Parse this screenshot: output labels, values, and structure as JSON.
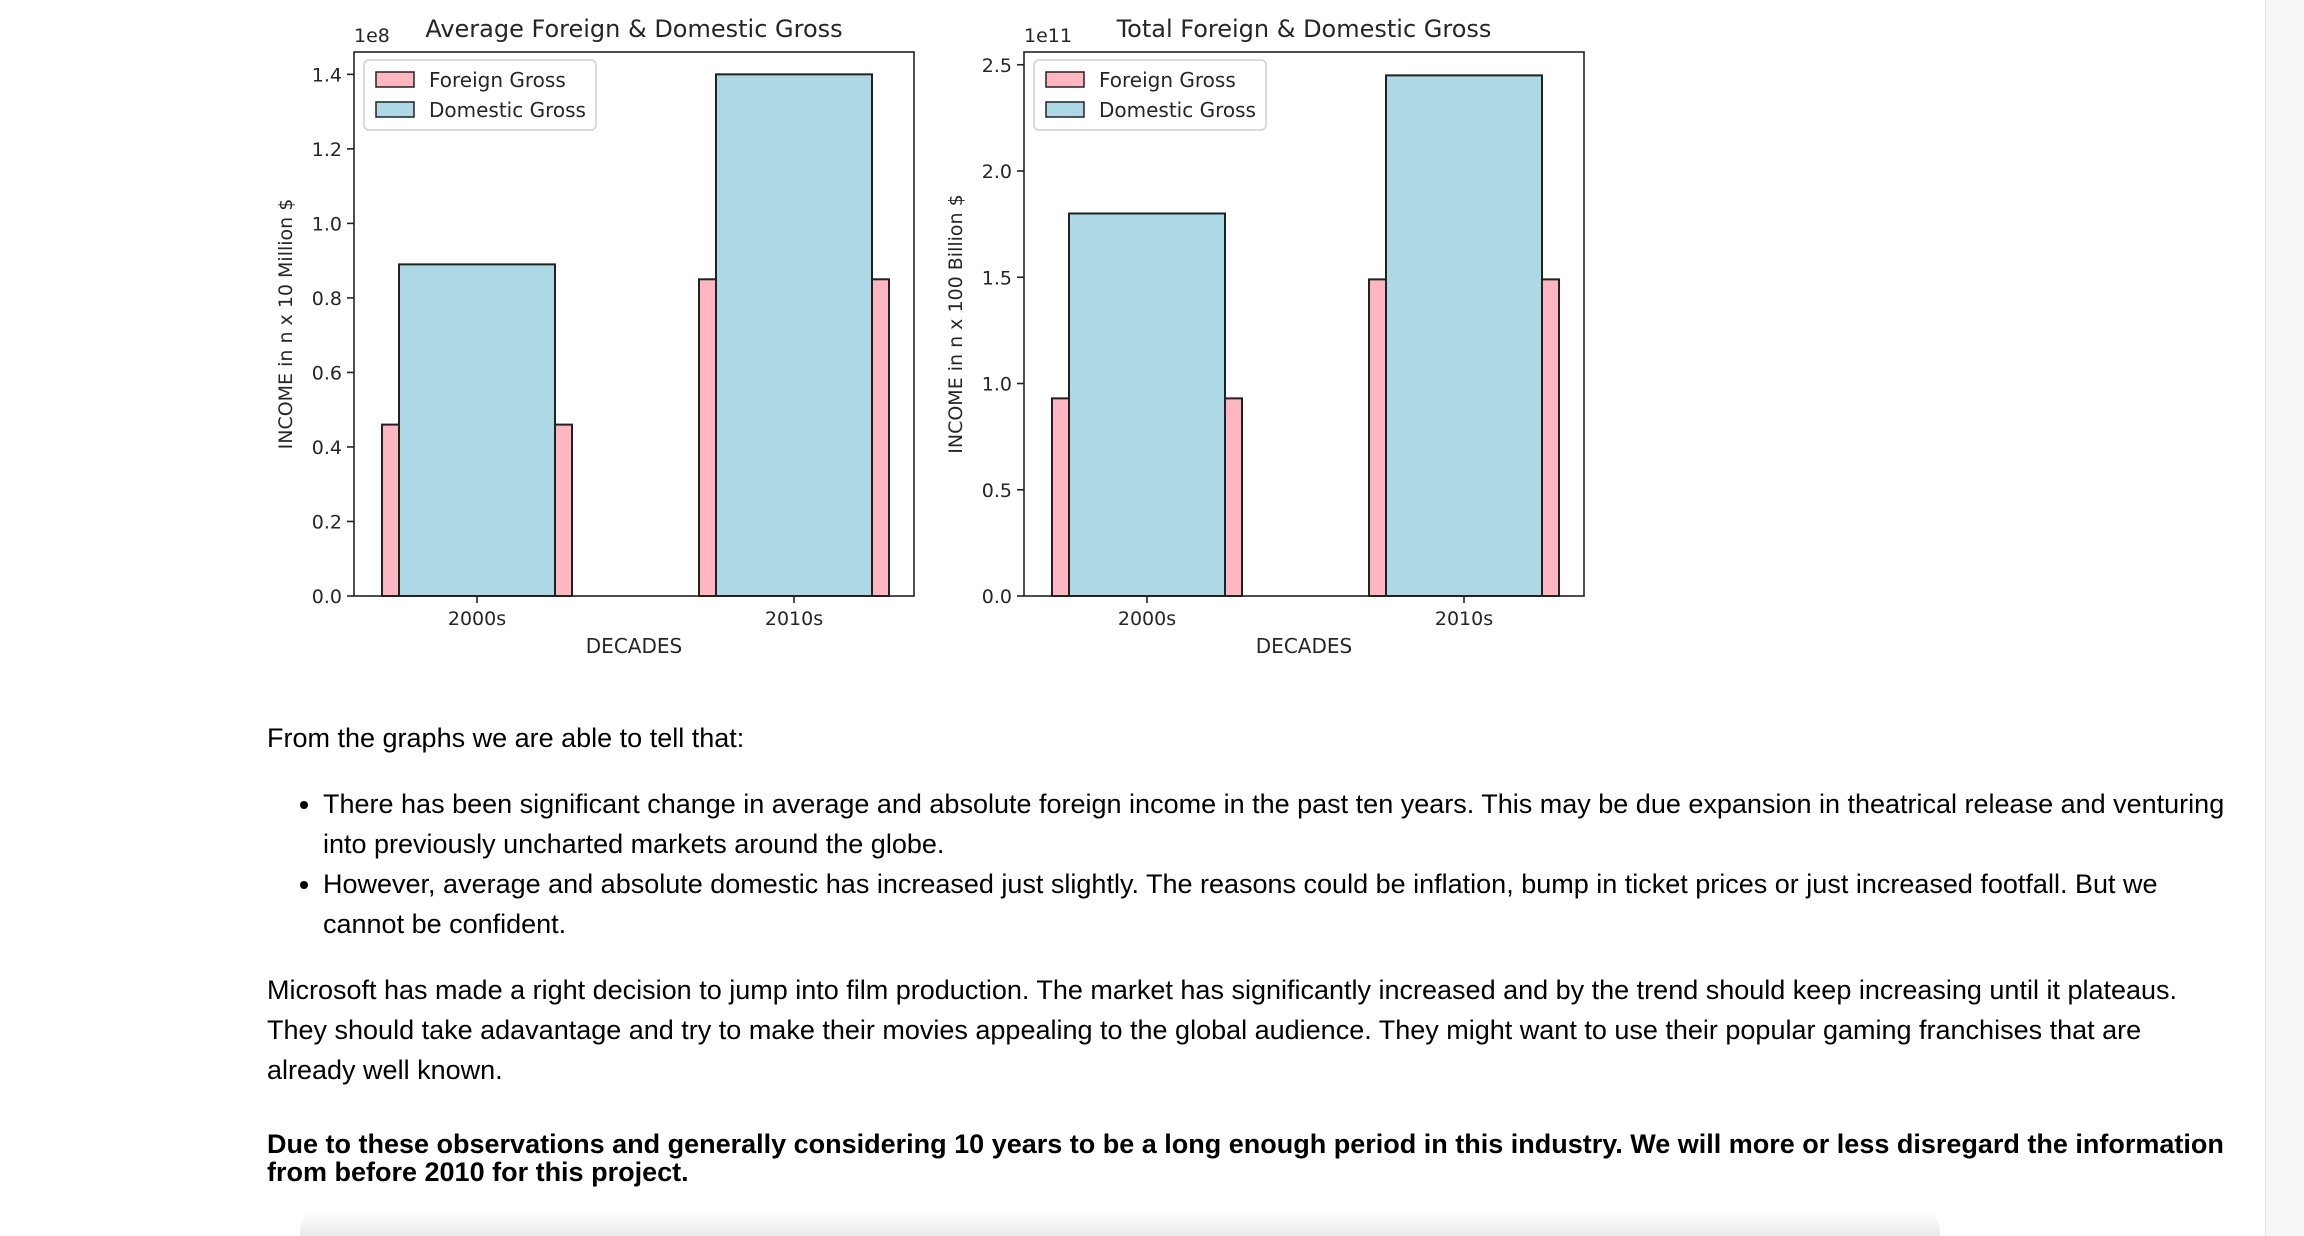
{
  "chart_data": [
    {
      "type": "bar",
      "title": "Average Foreign & Domestic Gross",
      "xlabel": "DECADES",
      "ylabel": "INCOME in n x 10 Million $",
      "offset_label": "1e8",
      "categories": [
        "2000s",
        "2010s"
      ],
      "ylim": [
        0,
        1.46
      ],
      "yticks": [
        "0.0",
        "0.2",
        "0.4",
        "0.6",
        "0.8",
        "1.0",
        "1.2",
        "1.4"
      ],
      "legend": "top-left",
      "series": [
        {
          "name": "Foreign Gross",
          "color": "#ffb6c1",
          "values": [
            0.46,
            0.85
          ],
          "bar": "wide"
        },
        {
          "name": "Domestic Gross",
          "color": "#add8e6",
          "values": [
            0.89,
            1.4
          ],
          "bar": "narrow"
        }
      ]
    },
    {
      "type": "bar",
      "title": "Total Foreign & Domestic Gross",
      "xlabel": "DECADES",
      "ylabel": "INCOME in n x 100 Billion $",
      "offset_label": "1e11",
      "categories": [
        "2000s",
        "2010s"
      ],
      "ylim": [
        0,
        2.56
      ],
      "yticks": [
        "0.0",
        "0.5",
        "1.0",
        "1.5",
        "2.0",
        "2.5"
      ],
      "legend": "top-left",
      "series": [
        {
          "name": "Foreign Gross",
          "color": "#ffb6c1",
          "values": [
            0.93,
            1.49
          ],
          "bar": "wide"
        },
        {
          "name": "Domestic Gross",
          "color": "#add8e6",
          "values": [
            1.8,
            2.45
          ],
          "bar": "narrow"
        }
      ]
    }
  ],
  "notes": {
    "intro": "From the graphs we are able to tell that:",
    "bullets": [
      "There has been significant change in average and absolute foreign income in the past ten years. This may be due expansion in theatrical release and venturing into previously uncharted markets around the globe.",
      "However, average and absolute domestic has increased just slightly. The reasons could be inflation, bump in ticket prices or just increased footfall. But we cannot be confident."
    ],
    "paragraph": "Microsoft has made a right decision to jump into film production. The market has significantly increased and by the trend should keep increasing until it plateaus. They should take adavantage and try to make their movies appealing to the global audience. They might want to use their popular gaming franchises that are already well known.",
    "conclusion": "Due to these observations and generally considering 10 years to be a long enough period in this industry. We will more or less disregard the information from before 2010 for this project."
  }
}
